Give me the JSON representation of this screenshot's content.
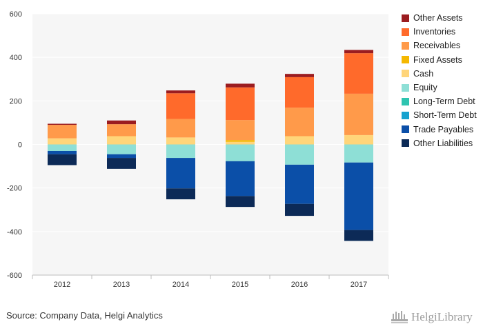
{
  "chart_data": {
    "type": "bar",
    "stacked": true,
    "categories": [
      "2012",
      "2013",
      "2014",
      "2015",
      "2016",
      "2017"
    ],
    "ylim": [
      -600,
      600
    ],
    "yticks": [
      600,
      400,
      200,
      0,
      -200,
      -400,
      -600
    ],
    "ytick_labels": [
      "600",
      "400",
      "200",
      "0",
      "-200",
      "-400",
      "-600"
    ],
    "grid": true,
    "legend_position": "right",
    "series": [
      {
        "name": "Other Assets",
        "color": "#9b1c20",
        "values": [
          5,
          17,
          13,
          17,
          15,
          15
        ]
      },
      {
        "name": "Inventories",
        "color": "#ff6a2b",
        "values": [
          0,
          0,
          118,
          150,
          140,
          186
        ]
      },
      {
        "name": "Receivables",
        "color": "#ff9a4a",
        "values": [
          62,
          55,
          85,
          92,
          131,
          190
        ]
      },
      {
        "name": "Fixed Assets",
        "color": "#f5b800",
        "values": [
          0,
          0,
          0,
          8,
          0,
          0
        ]
      },
      {
        "name": "Cash",
        "color": "#ffd57a",
        "values": [
          28,
          38,
          32,
          12,
          38,
          43
        ]
      },
      {
        "name": "Equity",
        "color": "#8edfd6",
        "values": [
          -30,
          -45,
          -62,
          -77,
          -93,
          -83
        ]
      },
      {
        "name": "Long-Term Debt",
        "color": "#2ec4b0",
        "values": [
          0,
          0,
          0,
          0,
          0,
          0
        ]
      },
      {
        "name": "Short-Term Debt",
        "color": "#16a2cf",
        "values": [
          0,
          0,
          0,
          0,
          0,
          0
        ]
      },
      {
        "name": "Trade Payables",
        "color": "#0b4fa8",
        "values": [
          -15,
          -17,
          -140,
          -160,
          -180,
          -310
        ]
      },
      {
        "name": "Other Liabilities",
        "color": "#0c2a57",
        "values": [
          -50,
          -50,
          -50,
          -50,
          -55,
          -50
        ]
      }
    ]
  },
  "footer": {
    "source_text": "Source: Company Data, Helgi Analytics",
    "logo_text": "HelgiLibrary"
  }
}
